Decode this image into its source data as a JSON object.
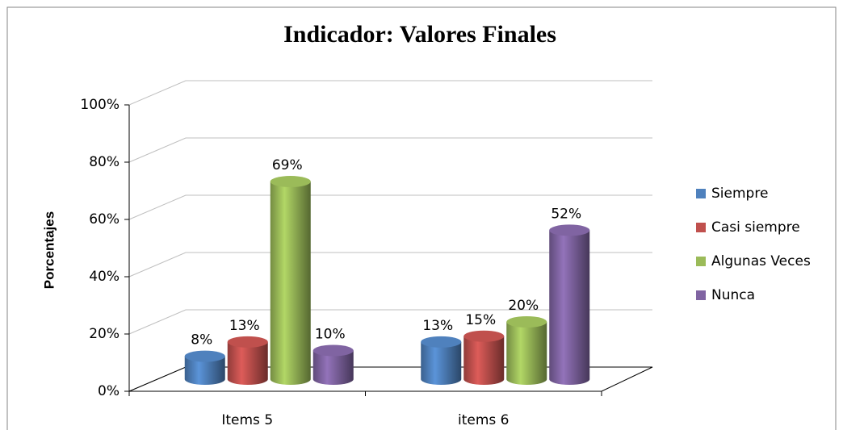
{
  "chart_data": {
    "type": "bar3d",
    "title": "Indicador: Valores Finales",
    "y_label": "Porcentajes",
    "categories": [
      "Items 5",
      "items 6"
    ],
    "series": [
      {
        "name": "Siempre",
        "color": "#4f81bd",
        "values": [
          8,
          13
        ],
        "value_labels": [
          "8%",
          "13%"
        ]
      },
      {
        "name": "Casi siempre",
        "color": "#c0504d",
        "values": [
          13,
          15
        ],
        "value_labels": [
          "13%",
          "15%"
        ]
      },
      {
        "name": "Algunas Veces",
        "color": "#9bbb59",
        "values": [
          69,
          20
        ],
        "value_labels": [
          "69%",
          "20%"
        ]
      },
      {
        "name": "Nunca",
        "color": "#8064a2",
        "values": [
          10,
          52
        ],
        "value_labels": [
          "10%",
          "52%"
        ]
      }
    ],
    "ylim": [
      0,
      100
    ],
    "yticks": [
      {
        "value": 0,
        "label": "0%"
      },
      {
        "value": 20,
        "label": "20%"
      },
      {
        "value": 40,
        "label": "40%"
      },
      {
        "value": 60,
        "label": "60%"
      },
      {
        "value": 80,
        "label": "80%"
      },
      {
        "value": 100,
        "label": "100%"
      }
    ],
    "grid": true,
    "legend": "right"
  }
}
